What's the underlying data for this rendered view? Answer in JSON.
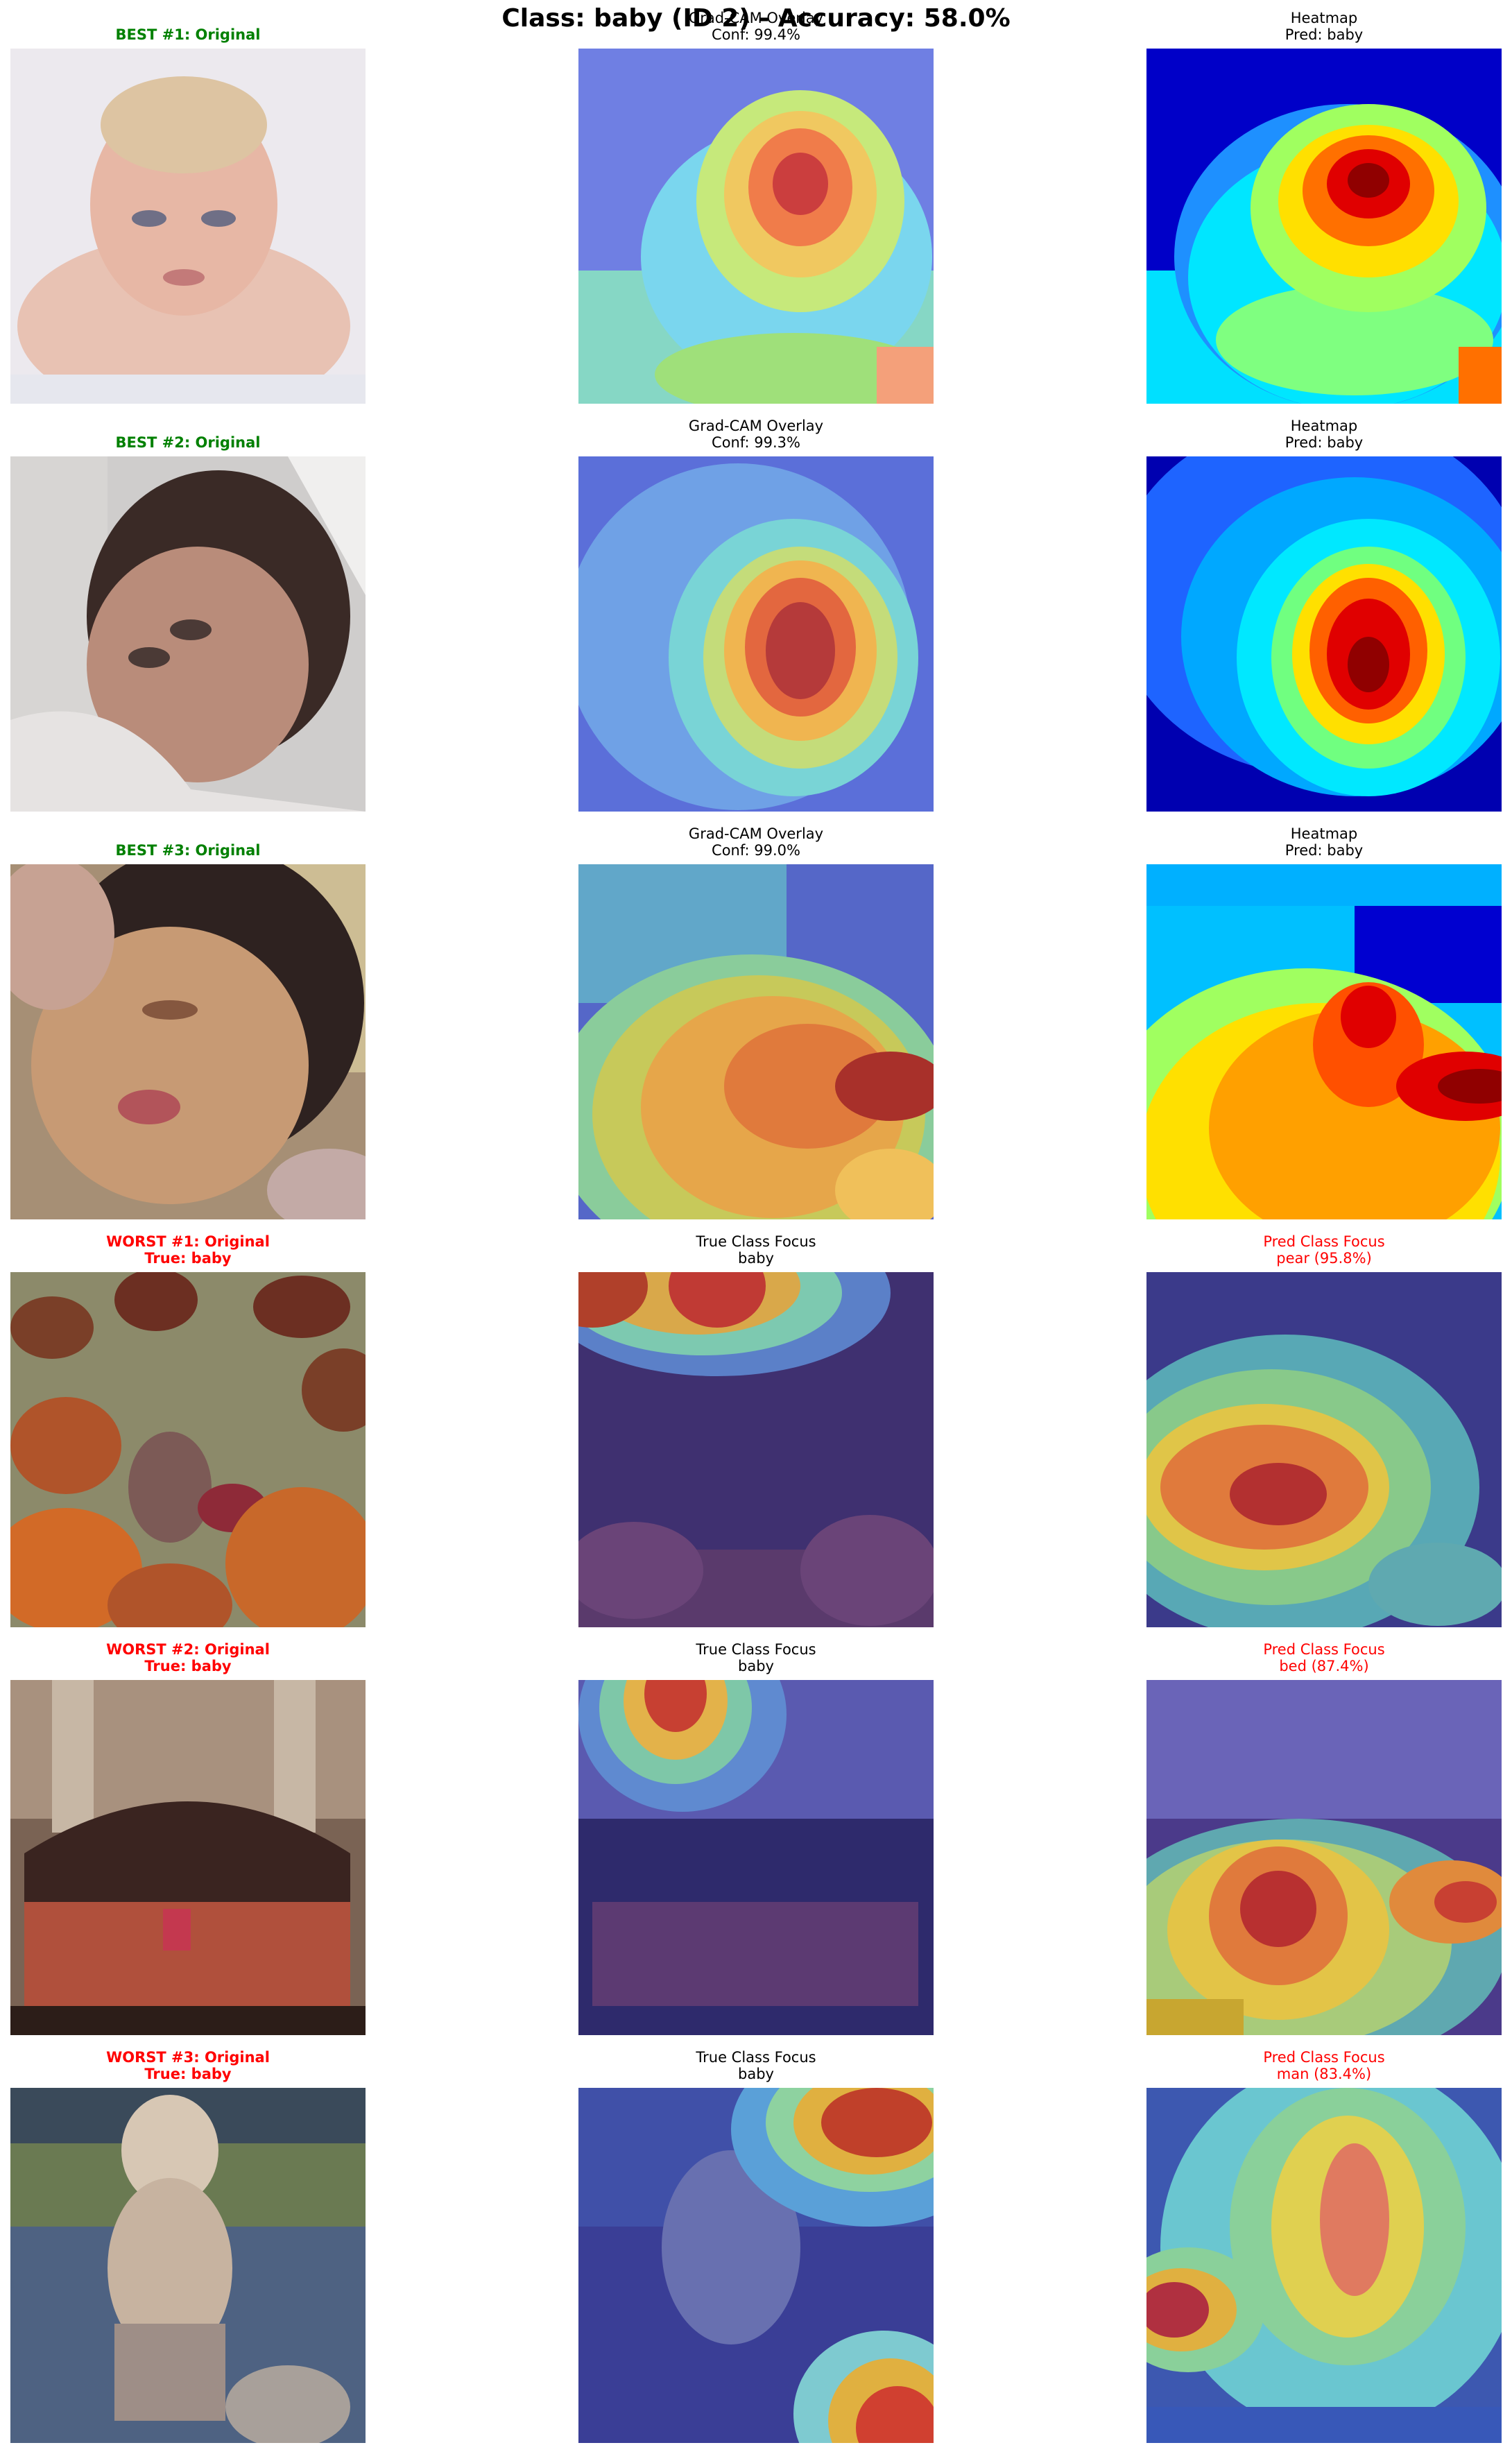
{
  "figure": {
    "title": "Class: baby (ID 2) - Accuracy: 58.0%"
  },
  "rows": [
    {
      "kind": "best",
      "original": {
        "line1": "BEST #1: Original",
        "line2": "",
        "color": "#008000",
        "image": "baby-face-pale-background"
      },
      "middle": {
        "line1": "Grad-CAM Overlay",
        "line2": "Conf: 99.4%",
        "color": "#000000",
        "image": "gradcam-overlay"
      },
      "right": {
        "line1": "Heatmap",
        "line2": "Pred: baby",
        "color": "#000000",
        "image": "heatmap"
      }
    },
    {
      "kind": "best",
      "original": {
        "line1": "BEST #2: Original",
        "line2": "",
        "color": "#008000",
        "image": "sleeping-baby-blanket"
      },
      "middle": {
        "line1": "Grad-CAM Overlay",
        "line2": "Conf: 99.3%",
        "color": "#000000",
        "image": "gradcam-overlay"
      },
      "right": {
        "line1": "Heatmap",
        "line2": "Pred: baby",
        "color": "#000000",
        "image": "heatmap"
      }
    },
    {
      "kind": "best",
      "original": {
        "line1": "BEST #3: Original",
        "line2": "",
        "color": "#008000",
        "image": "baby-face-closeup"
      },
      "middle": {
        "line1": "Grad-CAM Overlay",
        "line2": "Conf: 99.0%",
        "color": "#000000",
        "image": "gradcam-overlay"
      },
      "right": {
        "line1": "Heatmap",
        "line2": "Pred: baby",
        "color": "#000000",
        "image": "heatmap"
      }
    },
    {
      "kind": "worst",
      "original": {
        "line1": "WORST #1: Original",
        "line2": "True: baby",
        "color": "#ff0000",
        "image": "baby-among-pumpkins"
      },
      "middle": {
        "line1": "True Class Focus",
        "line2": "baby",
        "color": "#000000",
        "image": "true-class-overlay"
      },
      "right": {
        "line1": "Pred Class Focus",
        "line2": "pear (95.8%)",
        "color": "#ff0000",
        "image": "pred-class-overlay"
      }
    },
    {
      "kind": "worst",
      "original": {
        "line1": "WORST #2: Original",
        "line2": "True: baby",
        "color": "#ff0000",
        "image": "child-on-bed"
      },
      "middle": {
        "line1": "True Class Focus",
        "line2": "baby",
        "color": "#000000",
        "image": "true-class-overlay"
      },
      "right": {
        "line1": "Pred Class Focus",
        "line2": "bed (87.4%)",
        "color": "#ff0000",
        "image": "pred-class-overlay"
      }
    },
    {
      "kind": "worst",
      "original": {
        "line1": "WORST #3: Original",
        "line2": "True: baby",
        "color": "#ff0000",
        "image": "toddler-standing-outdoors"
      },
      "middle": {
        "line1": "True Class Focus",
        "line2": "baby",
        "color": "#000000",
        "image": "true-class-overlay"
      },
      "right": {
        "line1": "Pred Class Focus",
        "line2": "man (83.4%)",
        "color": "#ff0000",
        "image": "pred-class-overlay"
      }
    }
  ]
}
